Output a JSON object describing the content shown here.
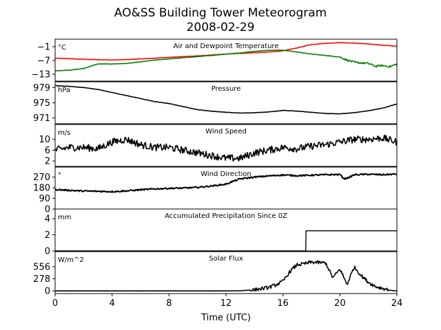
{
  "figure": {
    "title_line1": "AO&SS Building Tower Meteorogram",
    "title_line2": "2008-02-29",
    "xlabel": "Time (UTC)",
    "x_ticks": [
      "0",
      "4",
      "8",
      "12",
      "16",
      "20",
      "24"
    ]
  },
  "chart_data": [
    {
      "type": "line",
      "title": "Air and Dewpoint Temperature",
      "unit": "°C",
      "x_range": [
        0,
        24
      ],
      "ylim": [
        -16,
        2.3
      ],
      "yticks": [
        -13,
        -7,
        -1
      ],
      "ytick_labels": [
        "−13",
        "−7",
        "−1"
      ],
      "series": [
        {
          "color": "#ff0000",
          "x": [
            0,
            1,
            2,
            3,
            4,
            5,
            6,
            7,
            8,
            9,
            10,
            11,
            12,
            13,
            14,
            15,
            16,
            17,
            18,
            19,
            20,
            21,
            22,
            23,
            24
          ],
          "y": [
            -6,
            -6.2,
            -6.5,
            -6.6,
            -6.8,
            -6.6,
            -6.3,
            -6,
            -5.6,
            -5.3,
            -5,
            -4.6,
            -4.2,
            -3.9,
            -3.6,
            -3.3,
            -2.8,
            -1.5,
            0,
            0.5,
            0.8,
            0.6,
            0.2,
            -0.3,
            -0.8
          ]
        },
        {
          "color": "#008000",
          "x": [
            0,
            1,
            2,
            3,
            4,
            5,
            6,
            7,
            8,
            9,
            10,
            11,
            12,
            13,
            14,
            15,
            16,
            17,
            18,
            19,
            20,
            20.5,
            21,
            22,
            22.5,
            23,
            23.5,
            24
          ],
          "y": [
            -11.5,
            -11.2,
            -10.5,
            -8.5,
            -8.5,
            -8.3,
            -7.6,
            -6.8,
            -6.3,
            -5.8,
            -5.3,
            -4.8,
            -4.2,
            -3.7,
            -3,
            -2.5,
            -2.5,
            -3.3,
            -4.2,
            -4.8,
            -5.5,
            -6.8,
            -7.8,
            -8.3,
            -9.5,
            -9.2,
            -9.7,
            -8.5
          ]
        }
      ]
    },
    {
      "type": "line",
      "title": "Pressure",
      "unit": "hPa",
      "x_range": [
        0,
        24
      ],
      "ylim": [
        969.5,
        980.5
      ],
      "yticks": [
        971,
        975,
        979
      ],
      "ytick_labels": [
        "971",
        "975",
        "979"
      ],
      "series": [
        {
          "color": "#000000",
          "x": [
            0,
            1,
            2,
            3,
            4,
            5,
            6,
            7,
            8,
            9,
            10,
            11,
            12,
            13,
            14,
            15,
            16,
            17,
            18,
            19,
            20,
            21,
            22,
            23,
            24
          ],
          "y": [
            979.5,
            979.3,
            979,
            978.5,
            977.7,
            976.9,
            976.1,
            975.3,
            974.8,
            974,
            973.2,
            972.8,
            972.5,
            972.3,
            972.4,
            972.6,
            973,
            972.8,
            972.5,
            972.2,
            972.1,
            972.4,
            972.9,
            973.6,
            974.7
          ]
        }
      ]
    },
    {
      "type": "line",
      "title": "Wind Speed",
      "unit": "m/s",
      "x_range": [
        0,
        24
      ],
      "ylim": [
        0,
        15.5
      ],
      "yticks": [
        2,
        6,
        10
      ],
      "ytick_labels": [
        "2",
        "6",
        "10"
      ],
      "series": [
        {
          "color": "#000000",
          "x": [
            0,
            1,
            2,
            3,
            4,
            5,
            6,
            7,
            8,
            9,
            10,
            11,
            12,
            13,
            14,
            15,
            16,
            17,
            18,
            19,
            20,
            21,
            22,
            23,
            24
          ],
          "y": [
            6,
            7,
            7,
            6.5,
            9,
            10,
            8,
            7,
            7,
            6,
            5,
            4,
            3,
            3,
            5,
            6,
            7,
            6.5,
            7.5,
            8,
            9,
            10,
            10,
            10.5,
            9
          ]
        }
      ]
    },
    {
      "type": "line",
      "title": "Wind Direction",
      "unit": "°",
      "x_range": [
        0,
        24
      ],
      "ylim": [
        0,
        355
      ],
      "yticks": [
        0,
        90,
        180,
        270
      ],
      "ytick_labels": [
        "0",
        "90",
        "180",
        "270"
      ],
      "series": [
        {
          "color": "#000000",
          "x": [
            0,
            1,
            2,
            3,
            4,
            5,
            6,
            7,
            8,
            9,
            10,
            11,
            12,
            12.5,
            13,
            14,
            15,
            16,
            17,
            18,
            19,
            20,
            20.3,
            20.7,
            21,
            22,
            23,
            24
          ],
          "y": [
            165,
            158,
            152,
            150,
            147,
            153,
            163,
            170,
            175,
            177,
            183,
            195,
            210,
            235,
            255,
            270,
            280,
            288,
            282,
            286,
            290,
            292,
            255,
            270,
            290,
            294,
            290,
            296
          ]
        }
      ]
    },
    {
      "type": "line",
      "title": "Accumulated Precipitation Since 0Z",
      "unit": "mm",
      "x_range": [
        0,
        24
      ],
      "ylim": [
        0,
        5.2
      ],
      "yticks": [
        0,
        2,
        4
      ],
      "ytick_labels": [
        "0",
        "2",
        "4"
      ],
      "series": [
        {
          "color": "#000000",
          "x": [
            0,
            17.6,
            17.62,
            24
          ],
          "y": [
            0,
            0,
            2.5,
            2.5
          ]
        }
      ]
    },
    {
      "type": "line",
      "title": "Solar Flux",
      "unit": "W/m^2",
      "x_range": [
        0,
        24
      ],
      "ylim": [
        -60,
        900
      ],
      "yticks": [
        0,
        278,
        556
      ],
      "ytick_labels": [
        "0",
        "278",
        "556"
      ],
      "series": [
        {
          "color": "#000000",
          "x": [
            0,
            12,
            13,
            14,
            15,
            15.5,
            16,
            16.5,
            17,
            17.5,
            18,
            18.5,
            19,
            19.5,
            20,
            20.5,
            21,
            21.5,
            22,
            22.5,
            23,
            23.5,
            24
          ],
          "y": [
            0,
            0,
            5,
            25,
            80,
            140,
            220,
            450,
            600,
            620,
            660,
            650,
            640,
            300,
            500,
            150,
            550,
            350,
            200,
            100,
            60,
            15,
            0
          ]
        }
      ]
    }
  ]
}
